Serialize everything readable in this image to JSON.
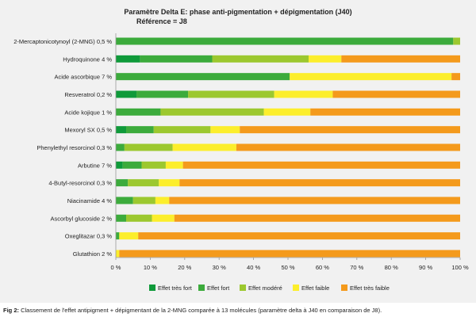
{
  "chart_data": {
    "type": "bar",
    "orientation": "horizontal",
    "stacked": true,
    "normalized": true,
    "title": "Paramètre Delta E: phase anti-pigmentation + dépigmentation (J40)",
    "subtitle": "Référence = J8",
    "categories": [
      "2-Mercaptonicotynoyl (2-MNG) 0,5 %",
      "Hydroquinone 4 %",
      "Acide ascorbique 7 %",
      "Resveratrol 0,2 %",
      "Acide kojique 1 %",
      "Mexoryl SX 0,5 %",
      "Phenylethyl resorcinol 0,3 %",
      "Arbutine 7 %",
      "4-Butyl-resorcinol 0,3 %",
      "Niacinamide 4 %",
      "Ascorbyl glucoside 2 %",
      "Oxeglitazar 0,3 %",
      "Glutathion 2 %"
    ],
    "series": [
      {
        "name": "Effet très fort",
        "color": "#0f9a3a",
        "values": [
          0,
          7,
          0,
          6,
          0,
          3,
          0,
          2,
          0,
          0,
          0,
          0,
          0
        ]
      },
      {
        "name": "Effet fort",
        "color": "#3cab3c",
        "values": [
          98,
          21,
          50.5,
          15,
          13,
          8,
          2.5,
          5.5,
          3.5,
          5,
          3,
          1,
          0
        ]
      },
      {
        "name": "Effet modéré",
        "color": "#9cc82f",
        "values": [
          2,
          28,
          0,
          25,
          30,
          16.5,
          14,
          7,
          9,
          6.5,
          7.5,
          0,
          0
        ]
      },
      {
        "name": "Effet faible",
        "color": "#fcee2c",
        "values": [
          0,
          9.5,
          47,
          17,
          13.5,
          8.5,
          18.5,
          5,
          6,
          4,
          6.5,
          5.5,
          1
        ]
      },
      {
        "name": "Effet très faible",
        "color": "#f49a1c",
        "values": [
          0,
          34.5,
          2.5,
          37,
          43.5,
          64,
          65,
          80.5,
          81.5,
          84.5,
          83,
          93.5,
          99
        ]
      }
    ],
    "x_ticks": [
      "0 %",
      "10 %",
      "20 %",
      "30 %",
      "40 %",
      "50 %",
      "60 %",
      "70 %",
      "80 %",
      "90 %",
      "100 %"
    ],
    "xlim": [
      0,
      100
    ],
    "grid": false,
    "legend_position": "bottom"
  },
  "caption": {
    "prefix": "Fig 2:",
    "text": " Classement de l'effet antipigment + dépigmentant de la 2-MNG comparée à 13 molécules (paramètre delta à J40 en comparaison de J8)."
  }
}
